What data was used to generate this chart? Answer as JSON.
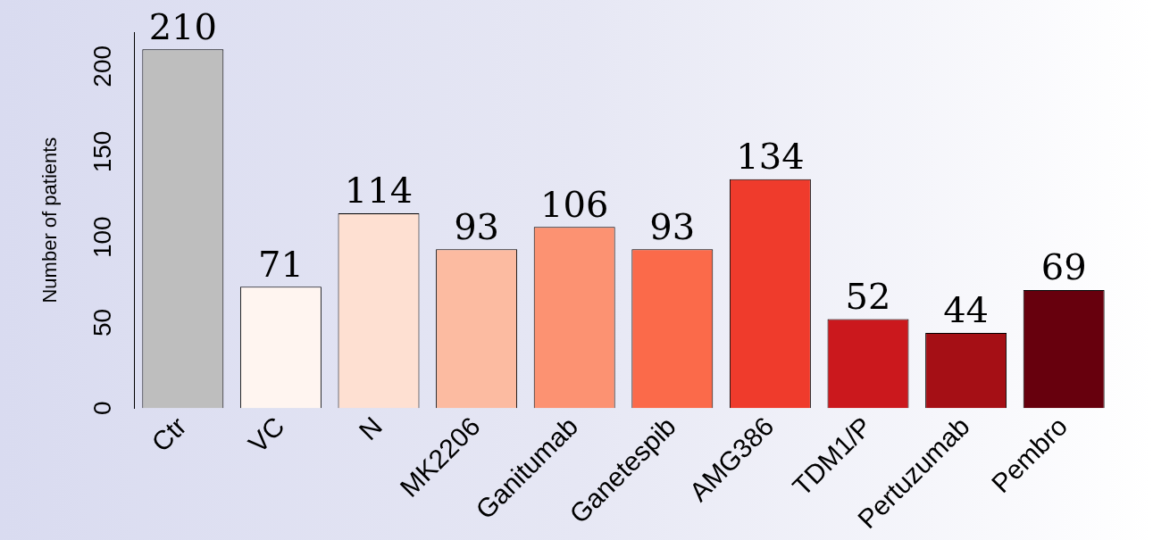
{
  "chart_data": {
    "type": "bar",
    "ylabel": "Number of patients",
    "categories": [
      "Ctr",
      "VC",
      "N",
      "MK2206",
      "Ganitumab",
      "Ganetespib",
      "AMG386",
      "TDM1/P",
      "Pertuzumab",
      "Pembro"
    ],
    "values": [
      210,
      71,
      114,
      93,
      106,
      93,
      134,
      52,
      44,
      69
    ],
    "colors": [
      "#bebebe",
      "#fff5f0",
      "#fee0d2",
      "#fcbba1",
      "#fc9272",
      "#fb6a4a",
      "#ef3b2c",
      "#cb181d",
      "#a50f15",
      "#67000d"
    ],
    "ylim": [
      0,
      220
    ],
    "yticks": [
      0,
      50,
      100,
      150,
      200
    ],
    "grid": false,
    "legend": false,
    "data_labels": true
  }
}
